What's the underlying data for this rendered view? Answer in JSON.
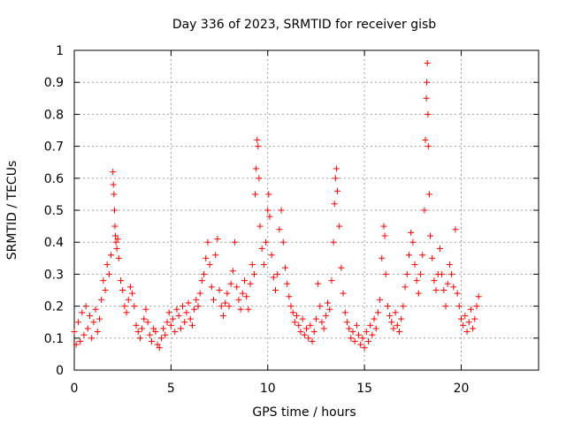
{
  "chart_data": {
    "type": "scatter",
    "title": "Day 336 of 2023, SRMTID for receiver gisb",
    "xlabel": "GPS time / hours",
    "ylabel": "SRMTID / TECUs",
    "xlim": [
      0,
      24
    ],
    "ylim": [
      0,
      1
    ],
    "xticks": [
      0,
      5,
      10,
      15,
      20
    ],
    "yticks": [
      0,
      0.1,
      0.2,
      0.3,
      0.4,
      0.5,
      0.6,
      0.7,
      0.8,
      0.9,
      1
    ],
    "ytick_labels": [
      "0",
      "0.1",
      "0.2",
      "0.3",
      "0.4",
      "0.5",
      "0.6",
      "0.7",
      "0.8",
      "0.9",
      "1"
    ],
    "grid": true,
    "marker": "+",
    "color": "#ff0000",
    "series": [
      {
        "name": "gisb",
        "points": [
          [
            0.0,
            0.12
          ],
          [
            0.1,
            0.08
          ],
          [
            0.2,
            0.15
          ],
          [
            0.3,
            0.09
          ],
          [
            0.4,
            0.18
          ],
          [
            0.5,
            0.11
          ],
          [
            0.6,
            0.2
          ],
          [
            0.7,
            0.13
          ],
          [
            0.8,
            0.17
          ],
          [
            0.9,
            0.1
          ],
          [
            1.0,
            0.15
          ],
          [
            1.1,
            0.19
          ],
          [
            1.2,
            0.12
          ],
          [
            1.3,
            0.16
          ],
          [
            1.4,
            0.22
          ],
          [
            1.5,
            0.28
          ],
          [
            1.6,
            0.25
          ],
          [
            1.7,
            0.33
          ],
          [
            1.8,
            0.3
          ],
          [
            1.9,
            0.36
          ],
          [
            2.0,
            0.62
          ],
          [
            2.02,
            0.58
          ],
          [
            2.05,
            0.55
          ],
          [
            2.08,
            0.5
          ],
          [
            2.1,
            0.45
          ],
          [
            2.12,
            0.42
          ],
          [
            2.15,
            0.4
          ],
          [
            2.2,
            0.38
          ],
          [
            2.25,
            0.41
          ],
          [
            2.3,
            0.35
          ],
          [
            2.4,
            0.28
          ],
          [
            2.5,
            0.25
          ],
          [
            2.6,
            0.2
          ],
          [
            2.7,
            0.18
          ],
          [
            2.8,
            0.22
          ],
          [
            2.9,
            0.26
          ],
          [
            3.0,
            0.24
          ],
          [
            3.1,
            0.2
          ],
          [
            3.2,
            0.14
          ],
          [
            3.3,
            0.12
          ],
          [
            3.4,
            0.1
          ],
          [
            3.5,
            0.13
          ],
          [
            3.6,
            0.16
          ],
          [
            3.7,
            0.19
          ],
          [
            3.8,
            0.15
          ],
          [
            3.9,
            0.11
          ],
          [
            4.0,
            0.09
          ],
          [
            4.1,
            0.13
          ],
          [
            4.2,
            0.12
          ],
          [
            4.3,
            0.08
          ],
          [
            4.4,
            0.07
          ],
          [
            4.5,
            0.1
          ],
          [
            4.6,
            0.13
          ],
          [
            4.7,
            0.11
          ],
          [
            4.8,
            0.15
          ],
          [
            4.9,
            0.18
          ],
          [
            5.0,
            0.14
          ],
          [
            5.1,
            0.16
          ],
          [
            5.2,
            0.12
          ],
          [
            5.3,
            0.19
          ],
          [
            5.4,
            0.17
          ],
          [
            5.5,
            0.13
          ],
          [
            5.6,
            0.2
          ],
          [
            5.7,
            0.15
          ],
          [
            5.8,
            0.18
          ],
          [
            5.9,
            0.21
          ],
          [
            6.0,
            0.16
          ],
          [
            6.1,
            0.14
          ],
          [
            6.2,
            0.19
          ],
          [
            6.3,
            0.22
          ],
          [
            6.4,
            0.2
          ],
          [
            6.5,
            0.24
          ],
          [
            6.6,
            0.28
          ],
          [
            6.7,
            0.3
          ],
          [
            6.8,
            0.35
          ],
          [
            6.9,
            0.4
          ],
          [
            7.0,
            0.33
          ],
          [
            7.1,
            0.26
          ],
          [
            7.2,
            0.22
          ],
          [
            7.3,
            0.36
          ],
          [
            7.4,
            0.41
          ],
          [
            7.5,
            0.25
          ],
          [
            7.6,
            0.2
          ],
          [
            7.7,
            0.17
          ],
          [
            7.8,
            0.21
          ],
          [
            7.9,
            0.24
          ],
          [
            8.0,
            0.2
          ],
          [
            8.1,
            0.27
          ],
          [
            8.2,
            0.31
          ],
          [
            8.3,
            0.4
          ],
          [
            8.4,
            0.26
          ],
          [
            8.5,
            0.22
          ],
          [
            8.6,
            0.19
          ],
          [
            8.7,
            0.24
          ],
          [
            8.8,
            0.28
          ],
          [
            8.9,
            0.23
          ],
          [
            9.0,
            0.19
          ],
          [
            9.1,
            0.27
          ],
          [
            9.2,
            0.33
          ],
          [
            9.3,
            0.3
          ],
          [
            9.35,
            0.55
          ],
          [
            9.4,
            0.63
          ],
          [
            9.45,
            0.72
          ],
          [
            9.5,
            0.7
          ],
          [
            9.55,
            0.6
          ],
          [
            9.6,
            0.45
          ],
          [
            9.7,
            0.38
          ],
          [
            9.8,
            0.33
          ],
          [
            9.9,
            0.4
          ],
          [
            10.0,
            0.5
          ],
          [
            10.05,
            0.55
          ],
          [
            10.1,
            0.48
          ],
          [
            10.2,
            0.36
          ],
          [
            10.3,
            0.29
          ],
          [
            10.4,
            0.25
          ],
          [
            10.5,
            0.3
          ],
          [
            10.6,
            0.44
          ],
          [
            10.7,
            0.5
          ],
          [
            10.8,
            0.4
          ],
          [
            10.9,
            0.32
          ],
          [
            11.0,
            0.27
          ],
          [
            11.1,
            0.23
          ],
          [
            11.2,
            0.2
          ],
          [
            11.3,
            0.18
          ],
          [
            11.4,
            0.15
          ],
          [
            11.5,
            0.17
          ],
          [
            11.6,
            0.14
          ],
          [
            11.7,
            0.12
          ],
          [
            11.8,
            0.16
          ],
          [
            11.9,
            0.11
          ],
          [
            12.0,
            0.13
          ],
          [
            12.1,
            0.1
          ],
          [
            12.2,
            0.14
          ],
          [
            12.3,
            0.09
          ],
          [
            12.4,
            0.12
          ],
          [
            12.5,
            0.16
          ],
          [
            12.6,
            0.27
          ],
          [
            12.7,
            0.2
          ],
          [
            12.8,
            0.15
          ],
          [
            12.9,
            0.13
          ],
          [
            13.0,
            0.17
          ],
          [
            13.1,
            0.21
          ],
          [
            13.2,
            0.19
          ],
          [
            13.3,
            0.28
          ],
          [
            13.4,
            0.4
          ],
          [
            13.45,
            0.52
          ],
          [
            13.5,
            0.6
          ],
          [
            13.55,
            0.63
          ],
          [
            13.6,
            0.56
          ],
          [
            13.7,
            0.45
          ],
          [
            13.8,
            0.32
          ],
          [
            13.9,
            0.24
          ],
          [
            14.0,
            0.18
          ],
          [
            14.1,
            0.15
          ],
          [
            14.2,
            0.13
          ],
          [
            14.3,
            0.1
          ],
          [
            14.4,
            0.12
          ],
          [
            14.5,
            0.09
          ],
          [
            14.6,
            0.14
          ],
          [
            14.7,
            0.11
          ],
          [
            14.8,
            0.08
          ],
          [
            14.9,
            0.1
          ],
          [
            15.0,
            0.07
          ],
          [
            15.1,
            0.12
          ],
          [
            15.2,
            0.09
          ],
          [
            15.3,
            0.14
          ],
          [
            15.4,
            0.11
          ],
          [
            15.5,
            0.16
          ],
          [
            15.6,
            0.13
          ],
          [
            15.7,
            0.18
          ],
          [
            15.8,
            0.22
          ],
          [
            15.9,
            0.35
          ],
          [
            16.0,
            0.45
          ],
          [
            16.05,
            0.42
          ],
          [
            16.1,
            0.3
          ],
          [
            16.2,
            0.2
          ],
          [
            16.3,
            0.17
          ],
          [
            16.4,
            0.15
          ],
          [
            16.5,
            0.13
          ],
          [
            16.6,
            0.18
          ],
          [
            16.7,
            0.14
          ],
          [
            16.8,
            0.12
          ],
          [
            16.9,
            0.16
          ],
          [
            17.0,
            0.2
          ],
          [
            17.1,
            0.26
          ],
          [
            17.2,
            0.3
          ],
          [
            17.3,
            0.36
          ],
          [
            17.4,
            0.43
          ],
          [
            17.5,
            0.4
          ],
          [
            17.6,
            0.33
          ],
          [
            17.7,
            0.28
          ],
          [
            17.8,
            0.24
          ],
          [
            17.9,
            0.3
          ],
          [
            18.0,
            0.36
          ],
          [
            18.1,
            0.5
          ],
          [
            18.15,
            0.72
          ],
          [
            18.2,
            0.85
          ],
          [
            18.22,
            0.9
          ],
          [
            18.25,
            0.96
          ],
          [
            18.28,
            0.8
          ],
          [
            18.3,
            0.7
          ],
          [
            18.35,
            0.55
          ],
          [
            18.4,
            0.42
          ],
          [
            18.5,
            0.35
          ],
          [
            18.6,
            0.28
          ],
          [
            18.7,
            0.25
          ],
          [
            18.8,
            0.3
          ],
          [
            18.9,
            0.38
          ],
          [
            19.0,
            0.3
          ],
          [
            19.1,
            0.25
          ],
          [
            19.2,
            0.2
          ],
          [
            19.3,
            0.27
          ],
          [
            19.4,
            0.33
          ],
          [
            19.5,
            0.3
          ],
          [
            19.6,
            0.26
          ],
          [
            19.7,
            0.44
          ],
          [
            19.8,
            0.24
          ],
          [
            19.9,
            0.2
          ],
          [
            20.0,
            0.16
          ],
          [
            20.1,
            0.14
          ],
          [
            20.2,
            0.17
          ],
          [
            20.3,
            0.12
          ],
          [
            20.4,
            0.15
          ],
          [
            20.5,
            0.19
          ],
          [
            20.6,
            0.13
          ],
          [
            20.7,
            0.16
          ],
          [
            20.8,
            0.2
          ],
          [
            20.9,
            0.23
          ]
        ]
      }
    ]
  }
}
